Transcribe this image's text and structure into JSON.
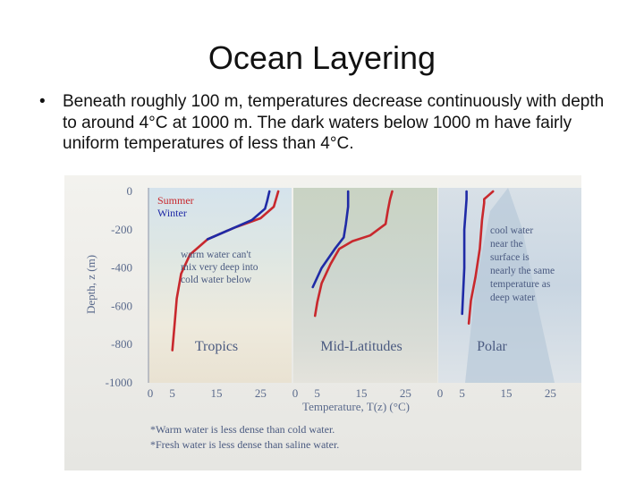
{
  "slide": {
    "title": "Ocean Layering",
    "bullet": "•",
    "bullet_text": "Beneath roughly 100 m, temperatures decrease continuously with depth to around 4°C at 1000 m.  The dark waters below 1000 m have fairly uniform temperatures of less than 4°C."
  },
  "figure": {
    "colors": {
      "summer": "#c8282d",
      "winter": "#1f2aa6",
      "background": "#f0eee8"
    },
    "notes": [
      "*Warm water is less dense than cold water.",
      "*Fresh water is less dense than saline water."
    ]
  },
  "chart_data": {
    "type": "line",
    "ylabel": "Depth, z (m)",
    "xlabel": "Temperature, T(z) (°C)",
    "ylim": [
      -1000,
      0
    ],
    "y_ticks": [
      "0",
      "-200",
      "-400",
      "-600",
      "-800",
      "-1000"
    ],
    "y_tick_values": [
      0,
      -200,
      -400,
      -600,
      -800,
      -1000
    ],
    "legend": {
      "entries": [
        "Summer",
        "Winter"
      ],
      "placement": "top-left"
    },
    "panels": [
      {
        "name": "Tropics",
        "xlim": [
          0,
          30
        ],
        "x_ticks": [
          "0",
          "5",
          "15",
          "25"
        ],
        "x_tick_values": [
          0,
          5,
          15,
          25
        ],
        "annotation": [
          "warm water can't",
          "mix very deep into",
          "cold water below"
        ],
        "series": [
          {
            "name": "Summer",
            "points": [
              [
                29,
                0
              ],
              [
                28.5,
                -40
              ],
              [
                28,
                -80
              ],
              [
                25,
                -140
              ],
              [
                19,
                -190
              ],
              [
                13,
                -250
              ],
              [
                9,
                -330
              ],
              [
                7,
                -430
              ],
              [
                6,
                -560
              ],
              [
                5.5,
                -700
              ],
              [
                5,
                -830
              ]
            ]
          },
          {
            "name": "Winter",
            "points": [
              [
                27,
                0
              ],
              [
                26.5,
                -50
              ],
              [
                26,
                -90
              ],
              [
                23,
                -150
              ],
              [
                18,
                -200
              ],
              [
                13,
                -250
              ]
            ]
          }
        ]
      },
      {
        "name": "Mid-Latitudes",
        "xlim": [
          0,
          30
        ],
        "x_ticks": [
          "0",
          "5",
          "15",
          "25"
        ],
        "x_tick_values": [
          0,
          5,
          15,
          25
        ],
        "series": [
          {
            "name": "Summer",
            "points": [
              [
                22,
                0
              ],
              [
                21.5,
                -40
              ],
              [
                21,
                -100
              ],
              [
                20.5,
                -170
              ],
              [
                17,
                -230
              ],
              [
                13,
                -260
              ],
              [
                10,
                -300
              ],
              [
                8,
                -380
              ],
              [
                6,
                -480
              ],
              [
                5,
                -580
              ],
              [
                4.5,
                -650
              ]
            ]
          },
          {
            "name": "Winter",
            "points": [
              [
                12,
                0
              ],
              [
                12,
                -80
              ],
              [
                11.5,
                -170
              ],
              [
                11,
                -240
              ],
              [
                9,
                -300
              ],
              [
                6,
                -400
              ],
              [
                4,
                -500
              ]
            ]
          }
        ]
      },
      {
        "name": "Polar",
        "xlim": [
          0,
          30
        ],
        "x_ticks": [
          "0",
          "5",
          "15",
          "25"
        ],
        "x_tick_values": [
          0,
          5,
          15,
          25
        ],
        "annotation": [
          "cool water",
          "near the",
          "surface is",
          "nearly the same",
          "temperature as",
          "deep water"
        ],
        "series": [
          {
            "name": "Summer",
            "points": [
              [
                12,
                0
              ],
              [
                11,
                -20
              ],
              [
                10,
                -40
              ],
              [
                10,
                -60
              ],
              [
                9.5,
                -150
              ],
              [
                9,
                -300
              ],
              [
                8,
                -450
              ],
              [
                7,
                -570
              ],
              [
                6.5,
                -690
              ]
            ]
          },
          {
            "name": "Winter",
            "points": [
              [
                6,
                0
              ],
              [
                6,
                -40
              ],
              [
                5.5,
                -200
              ],
              [
                5.5,
                -400
              ],
              [
                5,
                -640
              ]
            ]
          }
        ]
      }
    ]
  }
}
